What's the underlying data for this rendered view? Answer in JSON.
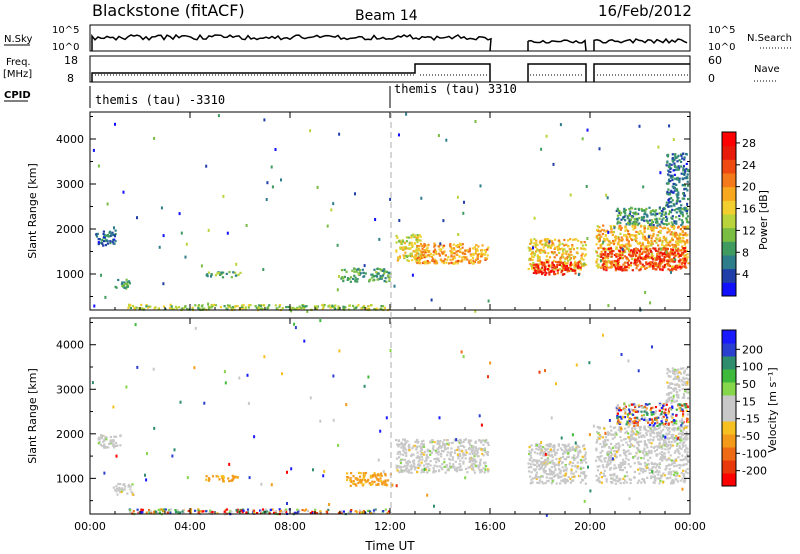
{
  "header": {
    "station": "Blackstone (fitACF)",
    "beam": "Beam 14",
    "date": "16/Feb/2012"
  },
  "summary": {
    "nsky_label": "N.Sky",
    "nsky_ticks": [
      "10^5",
      "10^0"
    ],
    "nsearch_label": "N.Search",
    "freq_label_1": "Freq.",
    "freq_label_2": "[MHz]",
    "freq_ticks": [
      "18",
      "8"
    ],
    "nave_label": "Nave",
    "nave_ticks": [
      "60",
      "0"
    ],
    "cpid_label": "CPID",
    "cpid_1": "themis (tau) -3310",
    "cpid_2": "themis (tau) 3310"
  },
  "chart_data": [
    {
      "type": "heatmap",
      "name": "power",
      "ylabel": "Slant Range [km]",
      "ylim": [
        200,
        4600
      ],
      "yticks": [
        1000,
        2000,
        3000,
        4000
      ],
      "xlim": [
        0,
        24
      ],
      "xticks": [
        "00:00",
        "04:00",
        "08:00",
        "12:00",
        "16:00",
        "20:00",
        "00:00"
      ],
      "colorbar": {
        "label": "Power [dB]",
        "ticks": [
          "4",
          "8",
          "12",
          "16",
          "20",
          "24",
          "28"
        ],
        "range": [
          0,
          30
        ],
        "colors": [
          "#1010ff",
          "#1f3ea8",
          "#2e7d8a",
          "#3f9b5f",
          "#79bd43",
          "#b8d43a",
          "#f2cf2e",
          "#f7a81e",
          "#f4791a",
          "#ee4a12",
          "#e81b0a",
          "#ff0000"
        ]
      },
      "regions": [
        {
          "t0": 0.2,
          "t1": 1.0,
          "r0": 1650,
          "r1": 2000,
          "level": 6
        },
        {
          "t0": 0.9,
          "t1": 1.6,
          "r0": 700,
          "r1": 900,
          "level": 10
        },
        {
          "t0": 1.4,
          "t1": 12.0,
          "r0": 220,
          "r1": 340,
          "level": 13
        },
        {
          "t0": 4.6,
          "t1": 6.0,
          "r0": 950,
          "r1": 1080,
          "level": 10
        },
        {
          "t0": 10.0,
          "t1": 12.0,
          "r0": 850,
          "r1": 1150,
          "level": 9
        },
        {
          "t0": 12.2,
          "t1": 13.2,
          "r0": 1300,
          "r1": 1900,
          "level": 15
        },
        {
          "t0": 13.0,
          "t1": 15.9,
          "r0": 1250,
          "r1": 1700,
          "level": 19
        },
        {
          "t0": 17.5,
          "t1": 19.8,
          "r0": 1100,
          "r1": 1800,
          "level": 17
        },
        {
          "t0": 17.7,
          "t1": 19.6,
          "r0": 1000,
          "r1": 1300,
          "level": 26
        },
        {
          "t0": 20.2,
          "t1": 23.9,
          "r0": 1150,
          "r1": 2100,
          "level": 18
        },
        {
          "t0": 20.4,
          "t1": 23.8,
          "r0": 1100,
          "r1": 1600,
          "level": 25
        },
        {
          "t0": 21.0,
          "t1": 23.9,
          "r0": 2100,
          "r1": 2500,
          "level": 8
        },
        {
          "t0": 23.0,
          "t1": 23.9,
          "r0": 2500,
          "r1": 3700,
          "level": 6
        }
      ]
    },
    {
      "type": "heatmap",
      "name": "velocity",
      "ylabel": "Slant Range [km]",
      "xlabel": "Time UT",
      "ylim": [
        200,
        4600
      ],
      "yticks": [
        1000,
        2000,
        3000,
        4000
      ],
      "xlim": [
        0,
        24
      ],
      "xticks": [
        "00:00",
        "04:00",
        "08:00",
        "12:00",
        "16:00",
        "20:00",
        "00:00"
      ],
      "colorbar": {
        "label": "Velocity [m s⁻¹]",
        "ticks": [
          "200",
          "100",
          "50",
          "15",
          "-15",
          "-50",
          "-100",
          "-200"
        ],
        "colors": [
          "#1a1aff",
          "#2a3fd0",
          "#2f8d6e",
          "#3fb93c",
          "#86d64b",
          "#c8c8c8",
          "#c8c8c8",
          "#f6c020",
          "#f39a1a",
          "#ef6a14",
          "#e8380c",
          "#ff0000"
        ]
      },
      "regions": [
        {
          "t0": 0.3,
          "t1": 1.2,
          "r0": 1700,
          "r1": 2000,
          "cls": "gray"
        },
        {
          "t0": 0.9,
          "t1": 1.7,
          "r0": 650,
          "r1": 900,
          "cls": "gray"
        },
        {
          "t0": 2.3,
          "t1": 3.2,
          "r0": 250,
          "r1": 330,
          "cls": "green"
        },
        {
          "t0": 4.6,
          "t1": 5.9,
          "r0": 950,
          "r1": 1080,
          "cls": "orange"
        },
        {
          "t0": 10.2,
          "t1": 12.0,
          "r0": 850,
          "r1": 1150,
          "cls": "orange"
        },
        {
          "t0": 1.4,
          "t1": 12.0,
          "r0": 220,
          "r1": 330,
          "cls": "mixed"
        },
        {
          "t0": 12.2,
          "t1": 15.9,
          "r0": 1150,
          "r1": 1900,
          "cls": "gray"
        },
        {
          "t0": 17.5,
          "t1": 19.8,
          "r0": 900,
          "r1": 1800,
          "cls": "gray"
        },
        {
          "t0": 20.2,
          "t1": 23.9,
          "r0": 900,
          "r1": 2200,
          "cls": "gray"
        },
        {
          "t0": 21.0,
          "t1": 23.9,
          "r0": 2200,
          "r1": 2700,
          "cls": "mixed"
        },
        {
          "t0": 23.0,
          "t1": 23.9,
          "r0": 2700,
          "r1": 3500,
          "cls": "gray"
        }
      ]
    }
  ]
}
